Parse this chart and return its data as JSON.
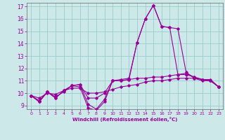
{
  "xlabel": "Windchill (Refroidissement éolien,°C)",
  "background_color": "#cce8e8",
  "grid_color": "#99cccc",
  "line_color": "#990099",
  "xlim": [
    -0.5,
    23.5
  ],
  "ylim": [
    8.7,
    17.3
  ],
  "xticks": [
    0,
    1,
    2,
    3,
    4,
    5,
    6,
    7,
    8,
    9,
    10,
    11,
    12,
    13,
    14,
    15,
    16,
    17,
    18,
    19,
    20,
    21,
    22,
    23
  ],
  "yticks": [
    9,
    10,
    11,
    12,
    13,
    14,
    15,
    16,
    17
  ],
  "x": [
    0,
    1,
    2,
    3,
    4,
    5,
    6,
    7,
    8,
    9,
    10,
    11,
    12,
    13,
    14,
    15,
    16,
    17,
    18,
    19,
    20,
    21,
    22,
    23
  ],
  "line1": [
    9.8,
    9.3,
    10.1,
    9.6,
    10.2,
    10.6,
    10.5,
    8.8,
    8.6,
    9.3,
    11.0,
    11.1,
    11.2,
    14.1,
    16.0,
    17.1,
    15.4,
    15.3,
    15.2,
    11.7,
    11.2,
    11.0,
    11.0,
    10.5
  ],
  "line2": [
    9.8,
    9.3,
    10.1,
    9.6,
    10.2,
    10.6,
    10.7,
    9.1,
    8.7,
    9.5,
    11.0,
    11.0,
    11.1,
    14.1,
    16.0,
    17.1,
    15.4,
    15.3,
    11.5,
    11.6,
    11.3,
    11.1,
    11.1,
    10.5
  ],
  "line3": [
    9.8,
    9.4,
    10.1,
    9.7,
    10.1,
    10.6,
    10.7,
    9.6,
    9.6,
    10.0,
    11.0,
    11.0,
    11.1,
    11.2,
    11.2,
    11.3,
    11.3,
    11.4,
    11.5,
    11.5,
    11.3,
    11.1,
    11.0,
    10.5
  ],
  "line4": [
    9.8,
    9.6,
    10.0,
    9.9,
    10.2,
    10.4,
    10.4,
    10.0,
    10.0,
    10.1,
    10.3,
    10.5,
    10.6,
    10.7,
    10.9,
    11.0,
    11.0,
    11.1,
    11.2,
    11.2,
    11.2,
    11.1,
    11.0,
    10.5
  ]
}
